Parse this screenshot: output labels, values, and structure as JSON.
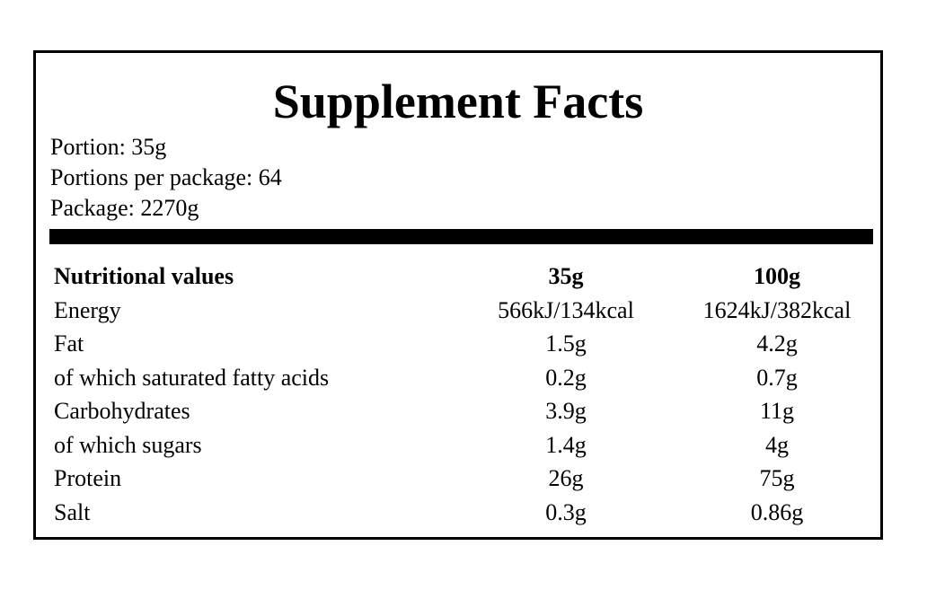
{
  "label": {
    "title": "Supplement Facts",
    "info": [
      "Portion: 35g",
      "Portions per package: 64",
      "Package: 2270g"
    ],
    "table": {
      "headers": [
        "Nutritional values",
        "35g",
        "100g"
      ],
      "rows": [
        [
          "Energy",
          "566kJ/134kcal",
          "1624kJ/382kcal"
        ],
        [
          "Fat",
          "1.5g",
          "4.2g"
        ],
        [
          "of which saturated fatty acids",
          "0.2g",
          "0.7g"
        ],
        [
          "Carbohydrates",
          "3.9g",
          "11g"
        ],
        [
          "of which sugars",
          "1.4g",
          "4g"
        ],
        [
          "Protein",
          "26g",
          "75g"
        ],
        [
          "Salt",
          "0.3g",
          "0.86g"
        ]
      ]
    }
  }
}
